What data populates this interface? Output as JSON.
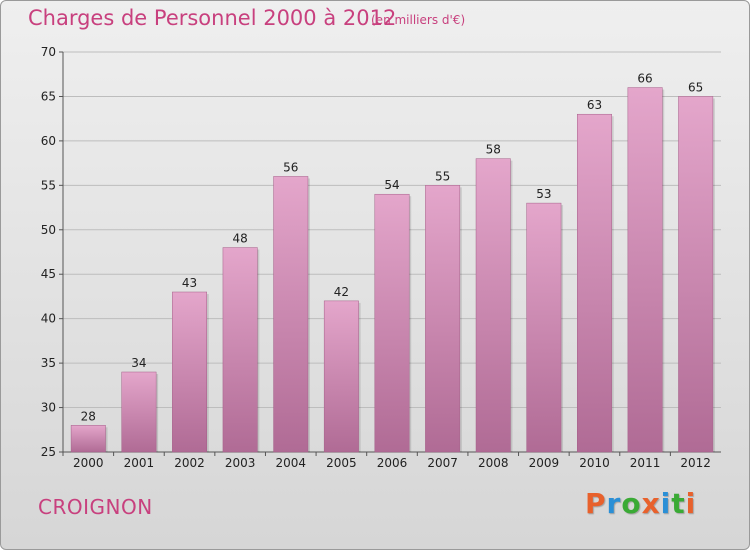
{
  "header": {
    "title": "Charges de Personnel 2000 à 2012",
    "subtitle": "(en milliers d'€)"
  },
  "footer": {
    "place": "CROIGNON",
    "logo_text": "Proxiti",
    "logo_colors": [
      "#e8612c",
      "#2a8fd6",
      "#3aaa35",
      "#e8612c",
      "#2a8fd6",
      "#3aaa35",
      "#e8612c"
    ]
  },
  "colors": {
    "bar_top": "#e4a6cb",
    "bar_bottom": "#b06b95",
    "accent": "#c8407e"
  },
  "chart_data": {
    "type": "bar",
    "categories": [
      "2000",
      "2001",
      "2002",
      "2003",
      "2004",
      "2005",
      "2006",
      "2007",
      "2008",
      "2009",
      "2010",
      "2011",
      "2012"
    ],
    "values": [
      28,
      34,
      43,
      48,
      56,
      42,
      54,
      55,
      58,
      53,
      63,
      66,
      65
    ],
    "title": "Charges de Personnel 2000 à 2012",
    "subtitle": "(en milliers d'€)",
    "xlabel": "",
    "ylabel": "",
    "ylim": [
      25,
      70
    ],
    "yticks": [
      25,
      30,
      35,
      40,
      45,
      50,
      55,
      60,
      65,
      70
    ],
    "grid": true
  }
}
